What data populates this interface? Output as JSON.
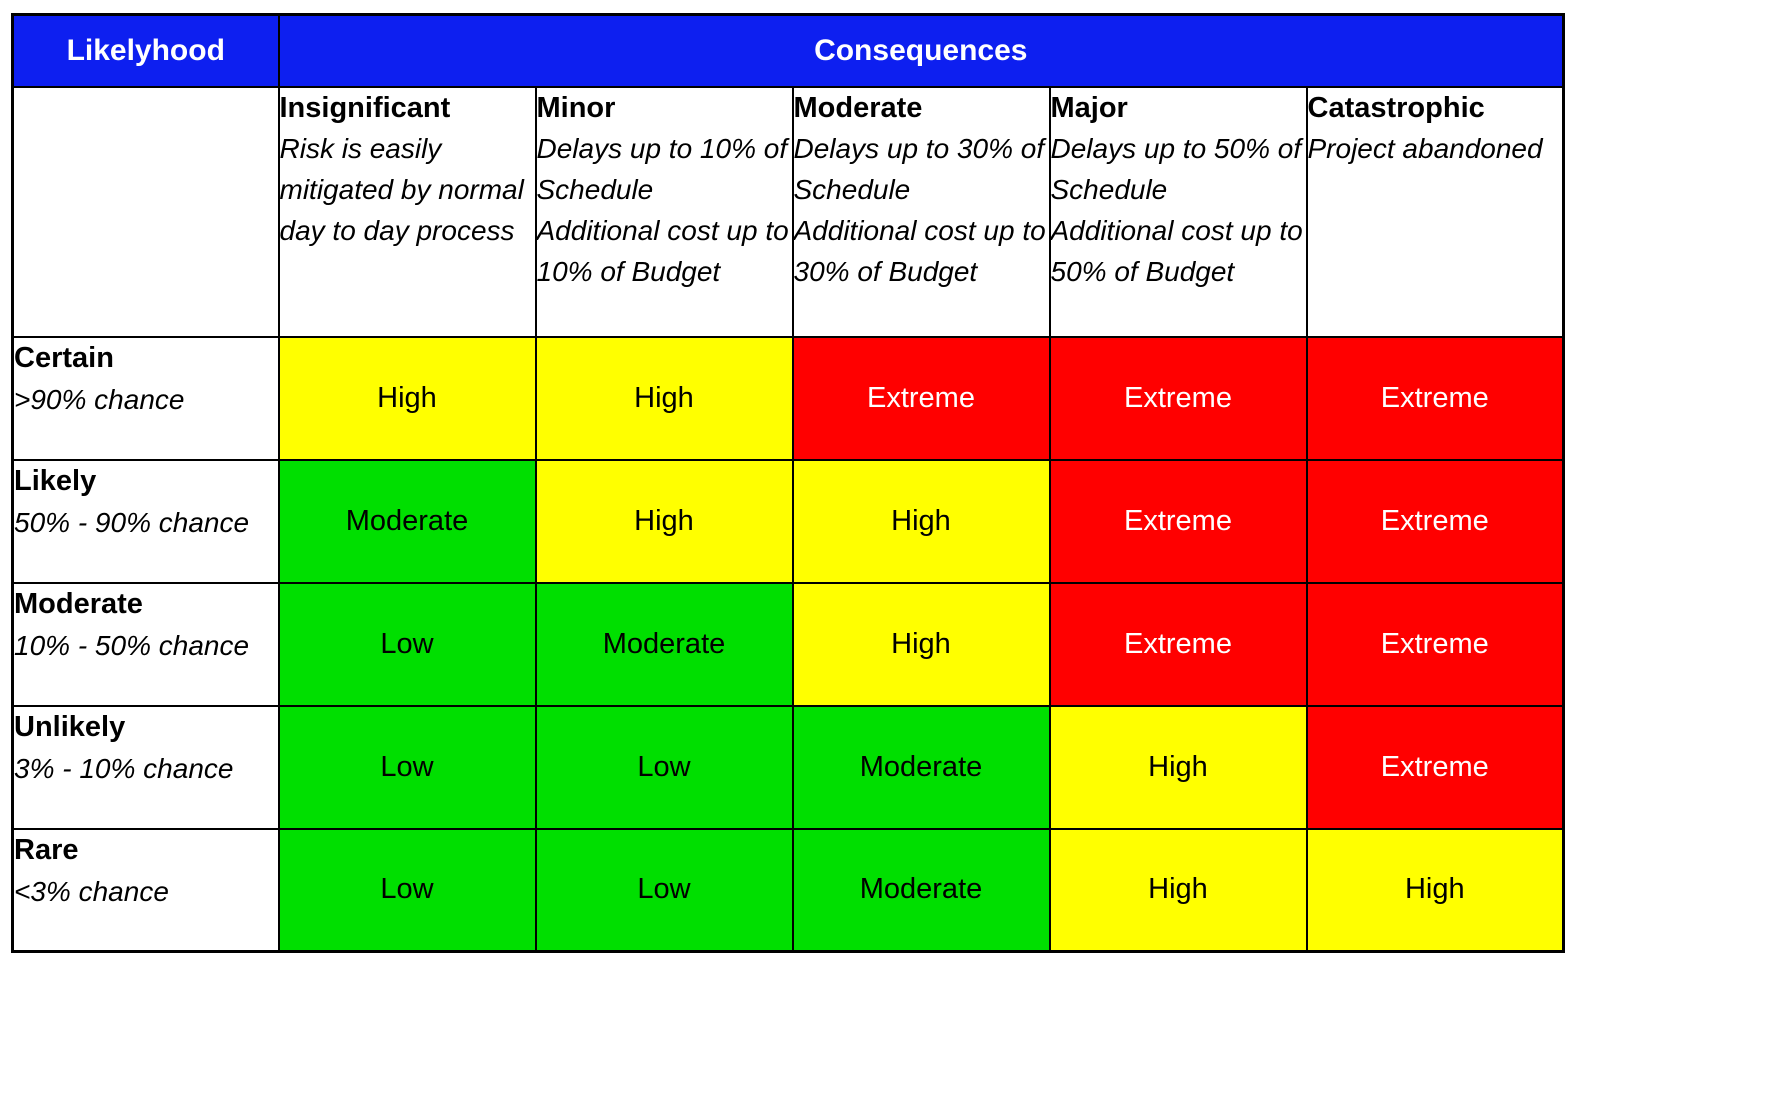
{
  "header": {
    "likelihood_label": "Likelyhood",
    "consequences_label": "Consequences"
  },
  "columns": [
    {
      "name": "Insignificant",
      "desc_lines": [
        "Risk is easily mitigated by normal day to day process"
      ]
    },
    {
      "name": "Minor",
      "desc_lines": [
        "Delays up to 10% of Schedule",
        "Additional cost up to 10% of Budget"
      ]
    },
    {
      "name": "Moderate",
      "desc_lines": [
        "Delays up to 30% of Schedule",
        "Additional cost up to 30% of Budget"
      ]
    },
    {
      "name": "Major",
      "desc_lines": [
        "Delays up to 50% of Schedule",
        "Additional cost up to 50% of Budget"
      ]
    },
    {
      "name": "Catastrophic",
      "desc_lines": [
        "Project abandoned"
      ]
    }
  ],
  "rows": [
    {
      "name": "Certain",
      "chance": ">90% chance",
      "cells": [
        {
          "label": "High",
          "level": "high"
        },
        {
          "label": "High",
          "level": "high"
        },
        {
          "label": "Extreme",
          "level": "extreme"
        },
        {
          "label": "Extreme",
          "level": "extreme"
        },
        {
          "label": "Extreme",
          "level": "extreme"
        }
      ]
    },
    {
      "name": "Likely",
      "chance": "50% - 90% chance",
      "cells": [
        {
          "label": "Moderate",
          "level": "moderate"
        },
        {
          "label": "High",
          "level": "high"
        },
        {
          "label": "High",
          "level": "high"
        },
        {
          "label": "Extreme",
          "level": "extreme"
        },
        {
          "label": "Extreme",
          "level": "extreme"
        }
      ]
    },
    {
      "name": "Moderate",
      "chance": "10% - 50% chance",
      "cells": [
        {
          "label": "Low",
          "level": "low"
        },
        {
          "label": "Moderate",
          "level": "moderate"
        },
        {
          "label": "High",
          "level": "high"
        },
        {
          "label": "Extreme",
          "level": "extreme"
        },
        {
          "label": "Extreme",
          "level": "extreme"
        }
      ]
    },
    {
      "name": "Unlikely",
      "chance": "3% - 10% chance",
      "cells": [
        {
          "label": "Low",
          "level": "low"
        },
        {
          "label": "Low",
          "level": "low"
        },
        {
          "label": "Moderate",
          "level": "moderate"
        },
        {
          "label": "High",
          "level": "high"
        },
        {
          "label": "Extreme",
          "level": "extreme"
        }
      ]
    },
    {
      "name": "Rare",
      "chance": "<3% chance",
      "cells": [
        {
          "label": "Low",
          "level": "low"
        },
        {
          "label": "Low",
          "level": "low"
        },
        {
          "label": "Moderate",
          "level": "moderate"
        },
        {
          "label": "High",
          "level": "high"
        },
        {
          "label": "High",
          "level": "high"
        }
      ]
    }
  ],
  "colors": {
    "header_blue": "#0d1ff0",
    "header_text": "#ffffff",
    "grid_black": "#000000",
    "levels": {
      "low": {
        "bg": "#00df00",
        "text": "#000000"
      },
      "moderate": {
        "bg": "#00df00",
        "text": "#000000"
      },
      "high": {
        "bg": "#ffff00",
        "text": "#000000"
      },
      "extreme": {
        "bg": "#ff0000",
        "text": "#ffffff"
      }
    }
  },
  "chart_data": {
    "type": "heatmap",
    "xlabel": "Consequences",
    "ylabel": "Likelyhood",
    "x_categories": [
      "Insignificant",
      "Minor",
      "Moderate",
      "Major",
      "Catastrophic"
    ],
    "y_categories": [
      "Certain",
      "Likely",
      "Moderate",
      "Unlikely",
      "Rare"
    ],
    "x_category_descriptions": [
      "Risk is easily mitigated by normal day to day process",
      "Delays up to 10% of Schedule Additional cost up to 10% of Budget",
      "Delays up to 30% of Schedule Additional cost up to 30% of Budget",
      "Delays up to 50% of Schedule Additional cost up to 50% of Budget",
      "Project abandoned"
    ],
    "y_category_descriptions": [
      ">90% chance",
      "50% - 90% chance",
      "10% - 50% chance",
      "3% - 10% chance",
      "<3% chance"
    ],
    "values": [
      [
        "High",
        "High",
        "Extreme",
        "Extreme",
        "Extreme"
      ],
      [
        "Moderate",
        "High",
        "High",
        "Extreme",
        "Extreme"
      ],
      [
        "Low",
        "Moderate",
        "High",
        "Extreme",
        "Extreme"
      ],
      [
        "Low",
        "Low",
        "Moderate",
        "High",
        "Extreme"
      ],
      [
        "Low",
        "Low",
        "Moderate",
        "High",
        "High"
      ]
    ],
    "value_colors": {
      "Low": "#00df00",
      "Moderate": "#00df00",
      "High": "#ffff00",
      "Extreme": "#ff0000"
    },
    "legend_position": "none",
    "grid": true
  }
}
